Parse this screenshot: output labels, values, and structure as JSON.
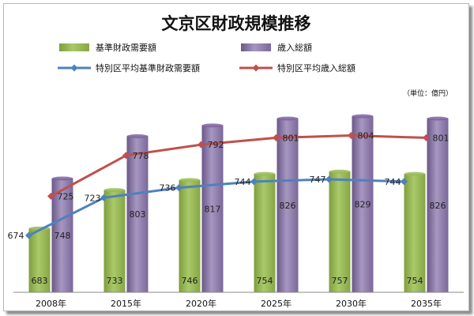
{
  "chart_data": {
    "type": "bar",
    "title": "文京区財政規模推移",
    "unit_label": "（単位：億円）",
    "categories": [
      "2008年",
      "2015年",
      "2020年",
      "2025年",
      "2030年",
      "2035年"
    ],
    "ylim": [
      600,
      860
    ],
    "grid": false,
    "legend_position": "top",
    "bar_series": [
      {
        "name": "基準財政需要額",
        "values": [
          683,
          733,
          746,
          754,
          757,
          754
        ],
        "color": "#9bbb59"
      },
      {
        "name": "歳入総額",
        "values": [
          748,
          803,
          817,
          826,
          829,
          826
        ],
        "color": "#8064a2"
      }
    ],
    "line_series": [
      {
        "name": "特別区平均基準財政需要額",
        "values": [
          674,
          723,
          736,
          744,
          747,
          744
        ],
        "color": "#4f81bd",
        "marker": "diamond"
      },
      {
        "name": "特別区平均歳入総額",
        "values": [
          725,
          778,
          792,
          801,
          804,
          801
        ],
        "color": "#c0504d",
        "marker": "diamond"
      }
    ]
  }
}
